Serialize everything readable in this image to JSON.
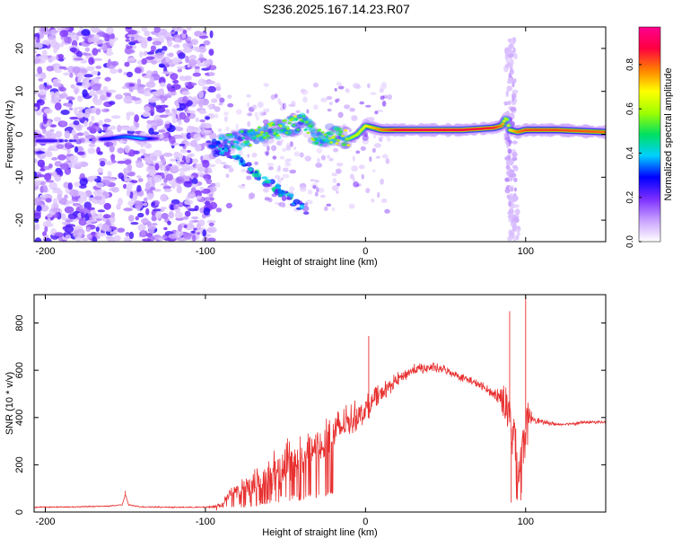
{
  "title": "S236.2025.167.14.23.R07",
  "chart_data": [
    {
      "type": "heatmap",
      "xlabel": "Height of straight line (km)",
      "ylabel": "Frequency (Hz)",
      "xlim": [
        -207,
        150
      ],
      "ylim": [
        -25,
        25
      ],
      "xticks": [
        -200,
        -100,
        0,
        100
      ],
      "yticks": [
        -20,
        -10,
        0,
        10,
        20
      ],
      "colorbar": {
        "label": "Normalized spectral amplitude",
        "range": [
          0.0,
          0.97
        ],
        "ticks": [
          0.0,
          0.2,
          0.4,
          0.6,
          0.8
        ],
        "colors": [
          "#ffffff",
          "#c8a0ff",
          "#7a2dff",
          "#0000ff",
          "#00d0ff",
          "#00e060",
          "#a0ff00",
          "#ffff00",
          "#ff8000",
          "#ff0040",
          "#ff0090"
        ]
      },
      "ridge": {
        "x": [
          -205,
          -180,
          -160,
          -150,
          -140,
          -130,
          -110,
          -95,
          -85,
          -75,
          -65,
          -55,
          -45,
          -38,
          -30,
          -20,
          -10,
          -5,
          0,
          10,
          20,
          40,
          60,
          80,
          85,
          88,
          90,
          95,
          100,
          120,
          150
        ],
        "y": [
          -1.5,
          -1.5,
          -1,
          -0.5,
          -1,
          -1,
          -1,
          -3,
          -2,
          -1,
          0,
          1,
          2,
          3,
          -1,
          0,
          -1,
          0,
          2,
          1,
          1,
          1,
          1,
          1.5,
          2,
          4,
          1,
          0.5,
          1,
          1,
          0.5
        ],
        "amplitude": [
          0.25,
          0.25,
          0.3,
          0.35,
          0.4,
          0.2,
          0.2,
          0.35,
          0.4,
          0.45,
          0.5,
          0.55,
          0.55,
          0.5,
          0.5,
          0.55,
          0.6,
          0.65,
          0.7,
          0.8,
          0.9,
          0.92,
          0.9,
          0.88,
          0.8,
          0.6,
          0.7,
          0.8,
          0.85,
          0.85,
          0.82
        ]
      }
    },
    {
      "type": "line",
      "xlabel": "Height of straight line (km)",
      "ylabel": "SNR (10 * v/v)",
      "xlim": [
        -207,
        150
      ],
      "ylim": [
        0,
        920
      ],
      "xticks": [
        -200,
        -100,
        0,
        100
      ],
      "yticks": [
        0,
        200,
        400,
        600,
        800
      ],
      "color": "#e83030",
      "envelope": {
        "x": [
          -207,
          -180,
          -160,
          -152,
          -150,
          -148,
          -140,
          -120,
          -100,
          -90,
          -85,
          -80,
          -70,
          -60,
          -50,
          -40,
          -30,
          -20,
          -10,
          0,
          10,
          20,
          30,
          40,
          50,
          60,
          70,
          80,
          85,
          90,
          93,
          95,
          97,
          100,
          103,
          110,
          120,
          140,
          150
        ],
        "y": [
          20,
          22,
          25,
          30,
          75,
          30,
          22,
          20,
          20,
          25,
          80,
          90,
          110,
          150,
          200,
          240,
          280,
          330,
          380,
          430,
          500,
          560,
          600,
          610,
          600,
          570,
          540,
          500,
          480,
          380,
          300,
          150,
          200,
          350,
          400,
          380,
          370,
          380,
          380
        ],
        "noise": [
          5,
          5,
          5,
          5,
          5,
          5,
          5,
          5,
          5,
          15,
          50,
          70,
          120,
          180,
          200,
          200,
          180,
          170,
          150,
          120,
          90,
          60,
          50,
          45,
          45,
          40,
          40,
          40,
          120,
          300,
          400,
          300,
          350,
          300,
          60,
          20,
          15,
          15,
          15
        ]
      },
      "spikes": [
        {
          "x": 2,
          "y": 745
        },
        {
          "x": 90,
          "y": 850
        },
        {
          "x": 100,
          "y": 920
        },
        {
          "x": 91,
          "y": 40
        },
        {
          "x": 97,
          "y": 50
        },
        {
          "x": -150,
          "y": 90
        }
      ]
    }
  ]
}
